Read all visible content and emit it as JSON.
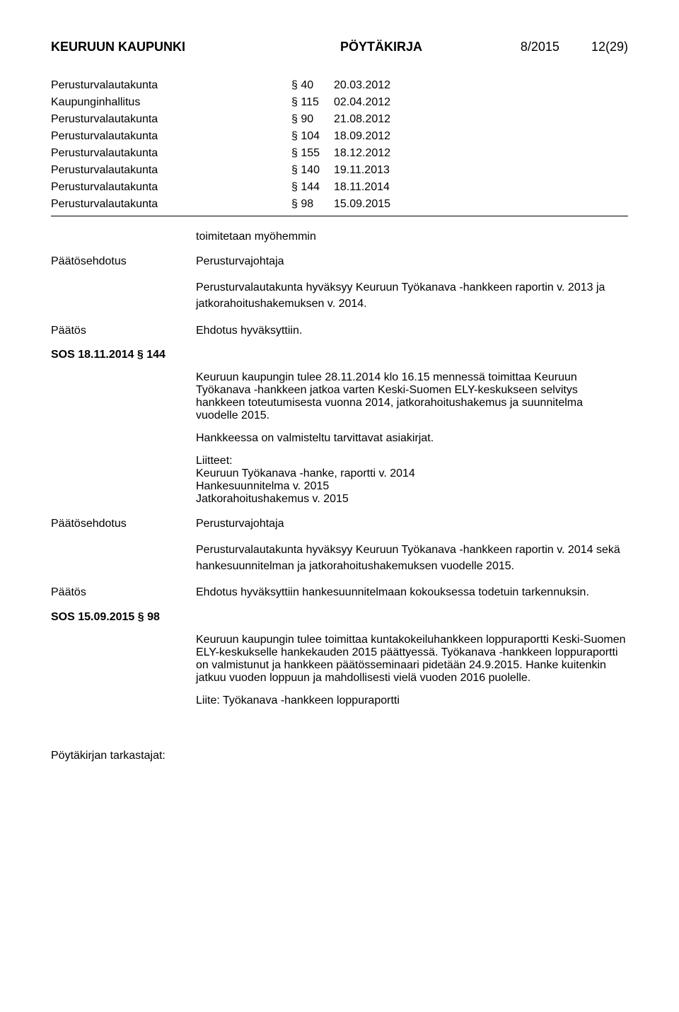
{
  "header": {
    "org": "KEURUUN KAUPUNKI",
    "doctype": "PÖYTÄKIRJA",
    "issue": "8/2015",
    "page": "12(29)"
  },
  "meetings": [
    {
      "body": "Perusturvalautakunta",
      "section": "§ 40",
      "date": "20.03.2012"
    },
    {
      "body": "Kaupunginhallitus",
      "section": "§ 115",
      "date": "02.04.2012"
    },
    {
      "body": "Perusturvalautakunta",
      "section": "§ 90",
      "date": "21.08.2012"
    },
    {
      "body": "Perusturvalautakunta",
      "section": "§ 104",
      "date": "18.09.2012"
    },
    {
      "body": "Perusturvalautakunta",
      "section": "§ 155",
      "date": "18.12.2012"
    },
    {
      "body": "Perusturvalautakunta",
      "section": "§ 140",
      "date": "19.11.2013"
    },
    {
      "body": "Perusturvalautakunta",
      "section": "§ 144",
      "date": "18.11.2014"
    },
    {
      "body": "Perusturvalautakunta",
      "section": "§ 98",
      "date": "15.09.2015"
    }
  ],
  "body": {
    "toimitetaan": "toimitetaan myöhemmin",
    "proposal1_label": "Päätösehdotus",
    "proposal1_who": "Perusturvajohtaja",
    "proposal1_text": "Perusturvalautakunta hyväksyy Keuruun Työkanava -hankkeen raportin v. 2013 ja jatkorahoitushakemuksen v. 2014.",
    "decision1_label": "Päätös",
    "decision1_text": "Ehdotus hyväksyttiin.",
    "heading1": "SOS 18.11.2014 § 144",
    "para1": "Keuruun kaupungin tulee 28.11.2014 klo 16.15 mennessä toimittaa Keuruun Työkanava -hankkeen jatkoa varten Keski-Suomen ELY-keskukseen selvitys hankkeen toteutumisesta vuonna 2014, jatkorahoitushakemus ja suunnitelma vuodelle 2015.",
    "para2": "Hankkeessa on valmisteltu tarvittavat asiakirjat.",
    "attachments_title": "Liitteet:",
    "att1": "Keuruun Työkanava -hanke, raportti v. 2014",
    "att2": "Hankesuunnitelma v. 2015",
    "att3": "Jatkorahoitushakemus v. 2015",
    "proposal2_label": "Päätösehdotus",
    "proposal2_who": "Perusturvajohtaja",
    "proposal2_text": "Perusturvalautakunta hyväksyy Keuruun Työkanava -hankkeen raportin v. 2014 sekä hankesuunnitelman ja jatkorahoitushakemuksen vuodelle 2015.",
    "decision2_label": "Päätös",
    "decision2_text": "Ehdotus hyväksyttiin hankesuunnitelmaan kokouksessa todetuin tarkennuksin.",
    "heading2": "SOS 15.09.2015 § 98",
    "para3": "Keuruun kaupungin tulee toimittaa kuntakokeiluhankkeen loppuraportti Keski-Suomen ELY-keskukselle hankekauden 2015 päättyessä. Työkanava -hankkeen loppuraportti on valmistunut ja  hankkeen päätösseminaari pidetään 24.9.2015. Hanke kuitenkin jatkuu vuoden loppuun ja mahdollisesti vielä vuoden 2016 puolelle.",
    "liite": "Liite: Työkanava -hankkeen loppuraportti"
  },
  "footer": "Pöytäkirjan tarkastajat:"
}
